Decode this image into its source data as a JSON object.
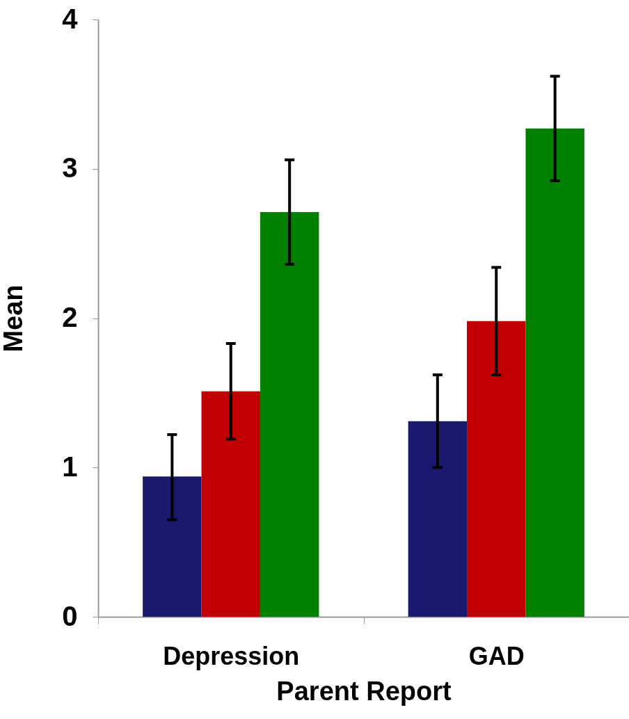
{
  "chart_data": {
    "type": "bar",
    "xlabel": "Parent Report",
    "ylabel": "Mean",
    "categories": [
      "Depression",
      "GAD"
    ],
    "series": [
      {
        "color": "#191970",
        "values": [
          0.94,
          1.31
        ],
        "errors": [
          [
            0.65,
            1.22
          ],
          [
            1.0,
            1.62
          ]
        ]
      },
      {
        "color": "#c00000",
        "values": [
          1.51,
          1.98
        ],
        "errors": [
          [
            1.19,
            1.83
          ],
          [
            1.62,
            2.34
          ]
        ]
      },
      {
        "color": "#008000",
        "values": [
          2.71,
          3.27
        ],
        "errors": [
          [
            2.36,
            3.06
          ],
          [
            2.92,
            3.62
          ]
        ]
      }
    ],
    "ylim": [
      0,
      4
    ],
    "yticks": [
      0,
      1,
      2,
      3,
      4
    ],
    "grid": false
  }
}
